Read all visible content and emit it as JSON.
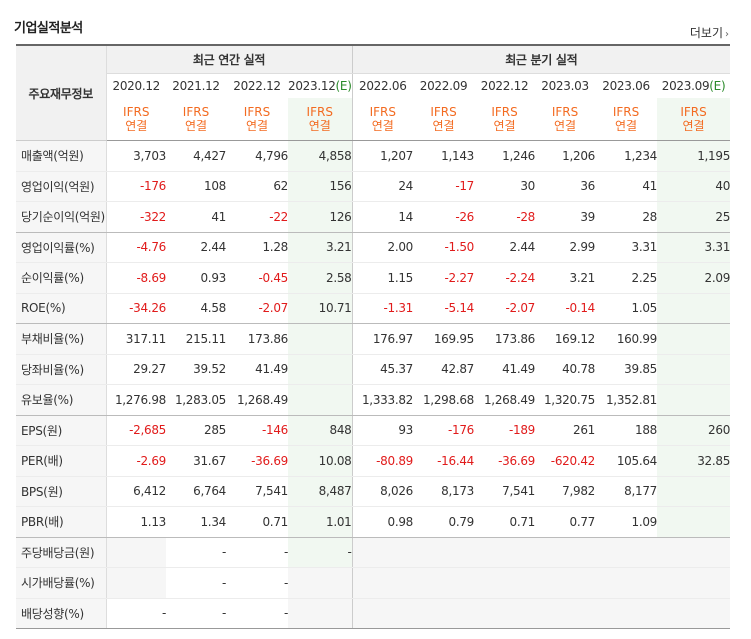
{
  "title": "기업실적분석",
  "more_label": "더보기",
  "header": {
    "label": "주요재무정보",
    "annual_group": "최근 연간 실적",
    "quarter_group": "최근 분기 실적",
    "periods": [
      "2020.12",
      "2021.12",
      "2022.12",
      "2023.12",
      "2022.06",
      "2022.09",
      "2022.12",
      "2023.03",
      "2023.06",
      "2023.09"
    ],
    "estimate_mark": "(E)",
    "ifrs": "IFRS",
    "consolidated": "연결"
  },
  "rows": [
    {
      "label": "매출액(억원)",
      "values": [
        "3,703",
        "4,427",
        "4,796",
        "4,858",
        "1,207",
        "1,143",
        "1,246",
        "1,206",
        "1,234",
        "1,195"
      ]
    },
    {
      "label": "영업이익(억원)",
      "values": [
        "-176",
        "108",
        "62",
        "156",
        "24",
        "-17",
        "30",
        "36",
        "41",
        "40"
      ]
    },
    {
      "label": "당기순이익(억원)",
      "values": [
        "-322",
        "41",
        "-22",
        "126",
        "14",
        "-26",
        "-28",
        "39",
        "28",
        "25"
      ]
    },
    {
      "label": "영업이익률(%)",
      "values": [
        "-4.76",
        "2.44",
        "1.28",
        "3.21",
        "2.00",
        "-1.50",
        "2.44",
        "2.99",
        "3.31",
        "3.31"
      ]
    },
    {
      "label": "순이익률(%)",
      "values": [
        "-8.69",
        "0.93",
        "-0.45",
        "2.58",
        "1.15",
        "-2.27",
        "-2.24",
        "3.21",
        "2.25",
        "2.09"
      ]
    },
    {
      "label": "ROE(%)",
      "values": [
        "-34.26",
        "4.58",
        "-2.07",
        "10.71",
        "-1.31",
        "-5.14",
        "-2.07",
        "-0.14",
        "1.05",
        ""
      ]
    },
    {
      "label": "부채비율(%)",
      "values": [
        "317.11",
        "215.11",
        "173.86",
        "",
        "176.97",
        "169.95",
        "173.86",
        "169.12",
        "160.99",
        ""
      ]
    },
    {
      "label": "당좌비율(%)",
      "values": [
        "29.27",
        "39.52",
        "41.49",
        "",
        "45.37",
        "42.87",
        "41.49",
        "40.78",
        "39.85",
        ""
      ]
    },
    {
      "label": "유보율(%)",
      "values": [
        "1,276.98",
        "1,283.05",
        "1,268.49",
        "",
        "1,333.82",
        "1,298.68",
        "1,268.49",
        "1,320.75",
        "1,352.81",
        ""
      ]
    },
    {
      "label": "EPS(원)",
      "values": [
        "-2,685",
        "285",
        "-146",
        "848",
        "93",
        "-176",
        "-189",
        "261",
        "188",
        "260"
      ]
    },
    {
      "label": "PER(배)",
      "values": [
        "-2.69",
        "31.67",
        "-36.69",
        "10.08",
        "-80.89",
        "-16.44",
        "-36.69",
        "-620.42",
        "105.64",
        "32.85"
      ]
    },
    {
      "label": "BPS(원)",
      "values": [
        "6,412",
        "6,764",
        "7,541",
        "8,487",
        "8,026",
        "8,173",
        "7,541",
        "7,982",
        "8,177",
        ""
      ]
    },
    {
      "label": "PBR(배)",
      "values": [
        "1.13",
        "1.34",
        "0.71",
        "1.01",
        "0.98",
        "0.79",
        "0.71",
        "0.77",
        "1.09",
        ""
      ]
    },
    {
      "label": "주당배당금(원)",
      "values": [
        "",
        "-",
        "-",
        "-",
        "",
        "",
        "",
        "",
        "",
        ""
      ]
    },
    {
      "label": "시가배당률(%)",
      "values": [
        "",
        "-",
        "-",
        "",
        "",
        "",
        "",
        "",
        "",
        ""
      ]
    },
    {
      "label": "배당성향(%)",
      "values": [
        "-",
        "-",
        "-",
        "",
        "",
        "",
        "",
        "",
        "",
        ""
      ]
    }
  ]
}
